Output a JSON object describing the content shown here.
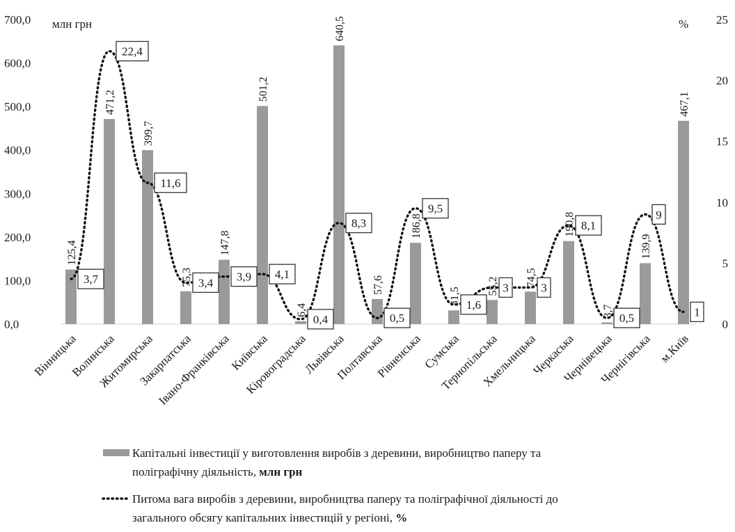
{
  "chart_data": {
    "type": "bar",
    "title": "",
    "categories": [
      "Вінницька",
      "Волинська",
      "Житомирська",
      "Закарпатська",
      "Івано-Франківська",
      "Київська",
      "Кіровоградська",
      "Львівська",
      "Полтавська",
      "Рівненська",
      "Сумська",
      "Тернопільська",
      "Хмельницька",
      "Черкаська",
      "Чернівецька",
      "Чернігівська",
      "м.Київ"
    ],
    "left_axis": {
      "unit": "млн грн",
      "ylim": [
        0,
        700
      ],
      "ticks": [
        "0,0",
        "100,0",
        "200,0",
        "300,0",
        "400,0",
        "500,0",
        "600,0",
        "700,0"
      ]
    },
    "right_axis": {
      "unit": "%",
      "ylim": [
        0,
        25
      ],
      "ticks": [
        "0",
        "5",
        "10",
        "15",
        "20",
        "25"
      ]
    },
    "grid": false,
    "legend_position": "bottom",
    "series": [
      {
        "name": "Капітальні інвестиції у виготовлення виробів з деревини, виробництво паперу та поліграфічну діяльність, млн грн",
        "type": "bar",
        "axis": "left",
        "values": [
          125.4,
          471.2,
          399.7,
          75.3,
          147.8,
          501.2,
          6.4,
          640.5,
          57.6,
          186.8,
          31.5,
          55.2,
          74.5,
          190.8,
          3.7,
          139.9,
          467.1
        ],
        "labels": [
          "125,4",
          "471,2",
          "399,7",
          "75,3",
          "147,8",
          "501,2",
          "6,4",
          "640,5",
          "57,6",
          "186,8",
          "31,5",
          "55,2",
          "74,5",
          "190,8",
          "3,7",
          "139,9",
          "467,1"
        ],
        "color": "#9a9a9a"
      },
      {
        "name": "Питома вага виробів з деревини, виробництва паперу та поліграфічної діяльності до загального обсягу капітальних інвестицій у регіоні, %",
        "type": "line",
        "style": "dotted",
        "axis": "right",
        "values": [
          3.7,
          22.4,
          11.6,
          3.4,
          3.9,
          4.1,
          0.4,
          8.3,
          0.5,
          9.5,
          1.6,
          3,
          3,
          8.1,
          0.5,
          9,
          1
        ],
        "labels": [
          "3,7",
          "22,4",
          "11,6",
          "3,4",
          "3,9",
          "4,1",
          "0,4",
          "8,3",
          "0,5",
          "9,5",
          "1,6",
          "3",
          "3",
          "8,1",
          "0,5",
          "9",
          "1"
        ],
        "color": "#111111"
      }
    ],
    "legend": [
      {
        "lines": [
          "Капітальні інвестиції у виготовлення виробів з деревини, виробництво паперу та",
          "поліграфічну діяльність, ",
          "млн грн"
        ]
      },
      {
        "lines": [
          "Питома вага виробів з деревини, виробництва паперу та поліграфічної діяльності до",
          "загального обсягу капітальних інвестицій у регіоні, ",
          "%"
        ]
      }
    ]
  }
}
